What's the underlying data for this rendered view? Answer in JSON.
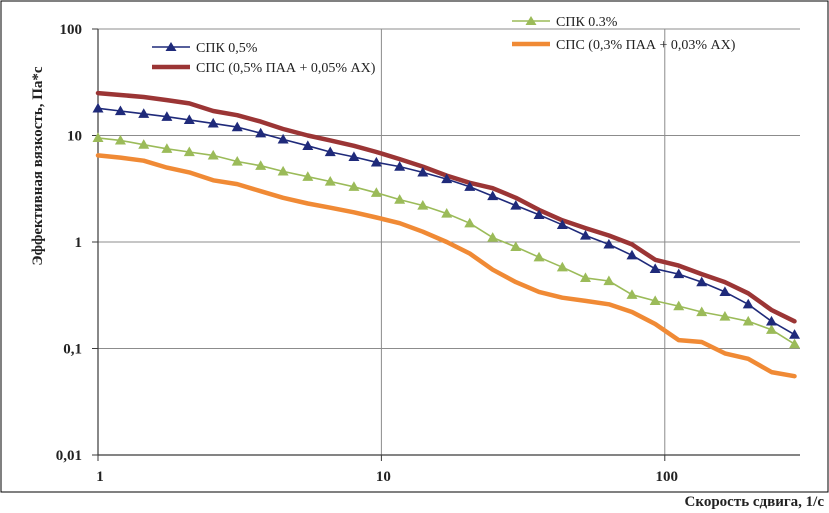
{
  "chart_data": {
    "type": "line",
    "xscale": "log",
    "yscale": "log",
    "xlim": [
      1,
      300
    ],
    "ylim": [
      0.01,
      100
    ],
    "xlabel": "Скорость  сдвига, 1/с",
    "ylabel": "Эффективная  вязкость,  Па*с",
    "xticks": [
      "1",
      "10",
      "100"
    ],
    "yticks": [
      "0,01",
      "0,1",
      "1",
      "10",
      "100"
    ],
    "grid": true,
    "x": [
      1,
      1.2,
      1.45,
      1.75,
      2.1,
      2.55,
      3.1,
      3.75,
      4.5,
      5.5,
      6.6,
      8,
      9.6,
      11.6,
      14,
      17,
      20.5,
      24.7,
      29.8,
      36,
      43.5,
      52.5,
      63.5,
      76.6,
      92.5,
      112,
      135,
      163,
      197,
      238,
      287
    ],
    "series": [
      {
        "name": "СПК 0,5%",
        "color": "#1f2a7a",
        "marker": "triangle",
        "line_width": 1.6,
        "values": [
          18,
          17,
          16,
          15,
          14,
          13,
          12,
          10.5,
          9.2,
          8,
          7,
          6.3,
          5.6,
          5.1,
          4.5,
          3.9,
          3.3,
          2.7,
          2.2,
          1.8,
          1.45,
          1.15,
          0.95,
          0.75,
          0.56,
          0.5,
          0.42,
          0.34,
          0.26,
          0.18,
          0.135
        ]
      },
      {
        "name": "СПС (0,5% ПАА + 0,05% АХ)",
        "color": "#9b3535",
        "marker": "none",
        "line_width": 4.5,
        "values": [
          25,
          24,
          23,
          21.5,
          20,
          17,
          15.5,
          13.5,
          11.5,
          10,
          9,
          8,
          7,
          6,
          5.1,
          4.2,
          3.6,
          3.2,
          2.6,
          2,
          1.6,
          1.35,
          1.15,
          0.95,
          0.68,
          0.6,
          0.5,
          0.42,
          0.33,
          0.23,
          0.18
        ]
      },
      {
        "name": "СПК 0.3%",
        "color": "#9bbb59",
        "marker": "triangle",
        "line_width": 1.6,
        "values": [
          9.5,
          9,
          8.2,
          7.5,
          7,
          6.5,
          5.7,
          5.2,
          4.6,
          4.1,
          3.7,
          3.3,
          2.9,
          2.5,
          2.2,
          1.85,
          1.5,
          1.1,
          0.9,
          0.72,
          0.58,
          0.46,
          0.43,
          0.32,
          0.28,
          0.25,
          0.22,
          0.2,
          0.18,
          0.15,
          0.11
        ]
      },
      {
        "name": "СПС (0,3% ПАА + 0,03% АХ)",
        "color": "#f08a35",
        "marker": "none",
        "line_width": 4.5,
        "values": [
          6.5,
          6.2,
          5.8,
          5,
          4.5,
          3.8,
          3.5,
          3,
          2.6,
          2.3,
          2.1,
          1.9,
          1.7,
          1.5,
          1.25,
          1,
          0.78,
          0.55,
          0.42,
          0.34,
          0.3,
          0.28,
          0.26,
          0.22,
          0.17,
          0.12,
          0.115,
          0.09,
          0.08,
          0.06,
          0.055
        ]
      }
    ],
    "legend": [
      {
        "label": "СПК 0,5%",
        "series": 0
      },
      {
        "label": "СПС (0,5% ПАА + 0,05% АХ)",
        "series": 1
      },
      {
        "label": "СПК 0.3%",
        "series": 2
      },
      {
        "label": "СПС (0,3% ПАА + 0,03% АХ)",
        "series": 3
      }
    ],
    "legend_placement": "top",
    "grid_color": "#8c8c8c",
    "axis_color": "#3a3a3a",
    "frame_color": "#000000"
  }
}
